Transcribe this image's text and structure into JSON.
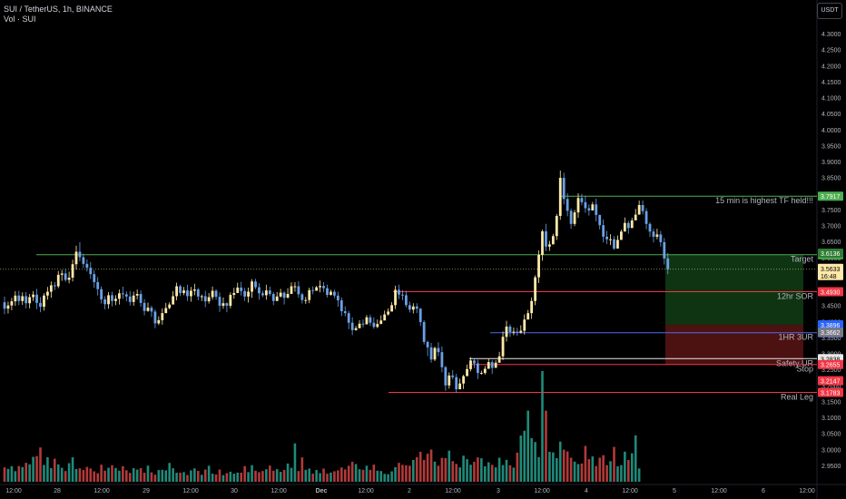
{
  "header": {
    "symbol": "SUI / TetherUS, 1h, BINANCE",
    "volume_label": "Vol · SUI",
    "currency_button": "USDT"
  },
  "colors": {
    "background": "#000000",
    "up": "#ffe9a8",
    "down": "#6aa0e6",
    "vol_up": "#1f8a7a",
    "vol_down": "#b33a3a",
    "axis_text": "#b2b5be"
  },
  "chart_data": {
    "type": "candlestick",
    "x_tick_labels": [
      "12:00",
      "28",
      "12:00",
      "29",
      "12:00",
      "30",
      "12:00",
      "Dec",
      "12:00",
      "2",
      "12:00",
      "3",
      "12:00",
      "4",
      "12:00",
      "5",
      "12:00",
      "6",
      "12:00"
    ],
    "y_tick_labels": [
      "4.3000",
      "4.2500",
      "4.2000",
      "4.1500",
      "4.1000",
      "4.0500",
      "4.0000",
      "3.9500",
      "3.9000",
      "3.8500",
      "3.8000",
      "3.7500",
      "3.7000",
      "3.6500",
      "3.6000",
      "3.5500",
      "3.5000",
      "3.4500",
      "3.4000",
      "3.3500",
      "3.3000",
      "3.2500",
      "3.2000",
      "3.1500",
      "3.1000",
      "3.0500",
      "3.0000",
      "2.9500"
    ],
    "ylim": [
      2.93,
      4.32
    ],
    "levels": [
      {
        "label": "15 min is highest TF held!!!",
        "price": 3.7917,
        "badge": "3.7917",
        "color": "#4caf50"
      },
      {
        "label": "Target",
        "price": 3.6088,
        "badge": "3.6088",
        "color": "#4caf50"
      },
      {
        "label": "12hr SOR",
        "price": 3.493,
        "badge": "3.4930",
        "color": "#f23645"
      },
      {
        "label": "1HR 3UR",
        "price": 3.3649,
        "badge": "3.3649",
        "color": "#4c6cf0"
      },
      {
        "label": "Safety UR",
        "price": 3.2838,
        "badge": "3.2838",
        "color": "#e8e8e8"
      },
      {
        "label": "Stop",
        "price": 3.2655,
        "badge": "3.2655",
        "color": "#f23645"
      },
      {
        "label": "Real Leg",
        "price": 3.1783,
        "badge": "3.1783",
        "color": "#f23645"
      }
    ],
    "extra_price_badges": [
      {
        "text": "3.6136",
        "color": "#2e7d32",
        "price": 3.6136
      },
      {
        "text": "3.3896",
        "color": "#2962ff",
        "price": 3.3896
      },
      {
        "text": "3.3662",
        "color": "#787b86",
        "price": 3.3662
      },
      {
        "text": "3.2147",
        "color": "#f23645",
        "price": 3.2147
      }
    ],
    "current_price": {
      "price": 3.5633,
      "text": "3.5633",
      "countdown": "16:48"
    },
    "position_box": {
      "entry": 3.3896,
      "target": 3.6088,
      "stop": 3.2655
    },
    "candles": [
      [
        3.46,
        3.44,
        3.478,
        3.423
      ],
      [
        3.44,
        3.45,
        3.462,
        3.425
      ],
      [
        3.45,
        3.463,
        3.474,
        3.435
      ],
      [
        3.463,
        3.481,
        3.495,
        3.449
      ],
      [
        3.481,
        3.464,
        3.496,
        3.451
      ],
      [
        3.464,
        3.479,
        3.491,
        3.452
      ],
      [
        3.479,
        3.457,
        3.492,
        3.441
      ],
      [
        3.457,
        3.476,
        3.486,
        3.441
      ],
      [
        3.476,
        3.484,
        3.495,
        3.464
      ],
      [
        3.484,
        3.458,
        3.502,
        3.439
      ],
      [
        3.458,
        3.446,
        3.476,
        3.429
      ],
      [
        3.446,
        3.481,
        3.488,
        3.434
      ],
      [
        3.481,
        3.493,
        3.508,
        3.468
      ],
      [
        3.493,
        3.513,
        3.525,
        3.474
      ],
      [
        3.513,
        3.51,
        3.523,
        3.498
      ],
      [
        3.51,
        3.546,
        3.558,
        3.504
      ],
      [
        3.546,
        3.55,
        3.561,
        3.527
      ],
      [
        3.55,
        3.53,
        3.565,
        3.524
      ],
      [
        3.53,
        3.537,
        3.556,
        3.519
      ],
      [
        3.537,
        3.579,
        3.593,
        3.525
      ],
      [
        3.579,
        3.618,
        3.637,
        3.562
      ],
      [
        3.618,
        3.601,
        3.648,
        3.588
      ],
      [
        3.601,
        3.58,
        3.612,
        3.568
      ],
      [
        3.58,
        3.568,
        3.594,
        3.556
      ],
      [
        3.568,
        3.548,
        3.586,
        3.533
      ],
      [
        3.548,
        3.523,
        3.56,
        3.505
      ],
      [
        3.523,
        3.501,
        3.539,
        3.481
      ],
      [
        3.501,
        3.469,
        3.51,
        3.456
      ],
      [
        3.469,
        3.454,
        3.479,
        3.438
      ],
      [
        3.454,
        3.482,
        3.492,
        3.44
      ],
      [
        3.482,
        3.464,
        3.493,
        3.447
      ],
      [
        3.464,
        3.471,
        3.482,
        3.451
      ],
      [
        3.471,
        3.488,
        3.5,
        3.453
      ],
      [
        3.488,
        3.485,
        3.509,
        3.471
      ],
      [
        3.485,
        3.478,
        3.494,
        3.463
      ],
      [
        3.478,
        3.461,
        3.495,
        3.45
      ],
      [
        3.461,
        3.481,
        3.493,
        3.449
      ],
      [
        3.481,
        3.486,
        3.5,
        3.469
      ],
      [
        3.486,
        3.458,
        3.497,
        3.446
      ],
      [
        3.458,
        3.433,
        3.47,
        3.419
      ],
      [
        3.433,
        3.443,
        3.459,
        3.43
      ],
      [
        3.443,
        3.431,
        3.449,
        3.414
      ],
      [
        3.431,
        3.394,
        3.438,
        3.379
      ],
      [
        3.394,
        3.404,
        3.416,
        3.389
      ],
      [
        3.404,
        3.426,
        3.441,
        3.39
      ],
      [
        3.426,
        3.442,
        3.458,
        3.429
      ],
      [
        3.442,
        3.453,
        3.46,
        3.438
      ],
      [
        3.453,
        3.479,
        3.495,
        3.461
      ],
      [
        3.479,
        3.51,
        3.521,
        3.466
      ],
      [
        3.51,
        3.489,
        3.515,
        3.48
      ],
      [
        3.489,
        3.497,
        3.508,
        3.482
      ],
      [
        3.497,
        3.479,
        3.515,
        3.464
      ],
      [
        3.479,
        3.496,
        3.508,
        3.462
      ],
      [
        3.496,
        3.5,
        3.518,
        3.482
      ],
      [
        3.5,
        3.478,
        3.505,
        3.466
      ],
      [
        3.478,
        3.479,
        3.484,
        3.464
      ],
      [
        3.479,
        3.463,
        3.496,
        3.445
      ],
      [
        3.463,
        3.476,
        3.489,
        3.456
      ],
      [
        3.476,
        3.496,
        3.509,
        3.468
      ],
      [
        3.496,
        3.477,
        3.501,
        3.468
      ],
      [
        3.477,
        3.449,
        3.491,
        3.43
      ],
      [
        3.449,
        3.457,
        3.475,
        3.44
      ],
      [
        3.457,
        3.449,
        3.46,
        3.429
      ],
      [
        3.449,
        3.483,
        3.491,
        3.441
      ],
      [
        3.483,
        3.489,
        3.505,
        3.471
      ],
      [
        3.489,
        3.506,
        3.521,
        3.49
      ],
      [
        3.506,
        3.495,
        3.524,
        3.481
      ],
      [
        3.495,
        3.478,
        3.505,
        3.464
      ],
      [
        3.478,
        3.493,
        3.506,
        3.459
      ],
      [
        3.493,
        3.525,
        3.532,
        3.474
      ],
      [
        3.525,
        3.507,
        3.533,
        3.501
      ],
      [
        3.507,
        3.488,
        3.52,
        3.468
      ],
      [
        3.488,
        3.482,
        3.496,
        3.476
      ],
      [
        3.482,
        3.497,
        3.515,
        3.468
      ],
      [
        3.497,
        3.486,
        3.509,
        3.479
      ],
      [
        3.486,
        3.464,
        3.492,
        3.451
      ],
      [
        3.464,
        3.478,
        3.492,
        3.464
      ],
      [
        3.478,
        3.49,
        3.502,
        3.475
      ],
      [
        3.49,
        3.474,
        3.494,
        3.453
      ],
      [
        3.474,
        3.486,
        3.504,
        3.473
      ],
      [
        3.486,
        3.51,
        3.522,
        3.494
      ],
      [
        3.51,
        3.51,
        3.523,
        3.493
      ],
      [
        3.51,
        3.485,
        3.526,
        3.474
      ],
      [
        3.485,
        3.467,
        3.49,
        3.456
      ],
      [
        3.467,
        3.467,
        3.477,
        3.455
      ],
      [
        3.467,
        3.498,
        3.506,
        3.457
      ],
      [
        3.498,
        3.496,
        3.51,
        3.485
      ],
      [
        3.496,
        3.507,
        3.511,
        3.502
      ],
      [
        3.507,
        3.511,
        3.528,
        3.491
      ],
      [
        3.511,
        3.504,
        3.523,
        3.492
      ],
      [
        3.504,
        3.483,
        3.515,
        3.475
      ],
      [
        3.483,
        3.493,
        3.499,
        3.481
      ],
      [
        3.493,
        3.481,
        3.499,
        3.473
      ],
      [
        3.481,
        3.466,
        3.493,
        3.446
      ],
      [
        3.466,
        3.432,
        3.475,
        3.417
      ],
      [
        3.432,
        3.426,
        3.447,
        3.416
      ],
      [
        3.426,
        3.396,
        3.433,
        3.376
      ],
      [
        3.396,
        3.373,
        3.413,
        3.357
      ],
      [
        3.373,
        3.379,
        3.386,
        3.371
      ],
      [
        3.379,
        3.393,
        3.404,
        3.379
      ],
      [
        3.393,
        3.391,
        3.406,
        3.381
      ],
      [
        3.391,
        3.413,
        3.42,
        3.395
      ],
      [
        3.413,
        3.396,
        3.421,
        3.386
      ],
      [
        3.396,
        3.383,
        3.413,
        3.377
      ],
      [
        3.383,
        3.392,
        3.406,
        3.379
      ],
      [
        3.392,
        3.403,
        3.419,
        3.392
      ],
      [
        3.403,
        3.422,
        3.434,
        3.405
      ],
      [
        3.422,
        3.431,
        3.441,
        3.418
      ],
      [
        3.431,
        3.451,
        3.46,
        3.445
      ],
      [
        3.451,
        3.499,
        3.512,
        3.439
      ],
      [
        3.499,
        3.484,
        3.515,
        3.47
      ],
      [
        3.484,
        3.482,
        3.498,
        3.466
      ],
      [
        3.482,
        3.451,
        3.496,
        3.444
      ],
      [
        3.451,
        3.437,
        3.462,
        3.428
      ],
      [
        3.437,
        3.447,
        3.457,
        3.425
      ],
      [
        3.447,
        3.44,
        3.457,
        3.426
      ],
      [
        3.44,
        3.398,
        3.442,
        3.386
      ],
      [
        3.398,
        3.336,
        3.404,
        3.328
      ],
      [
        3.336,
        3.319,
        3.34,
        3.292
      ],
      [
        3.319,
        3.281,
        3.333,
        3.271
      ],
      [
        3.281,
        3.317,
        3.321,
        3.276
      ],
      [
        3.317,
        3.304,
        3.335,
        3.291
      ],
      [
        3.304,
        3.257,
        3.322,
        3.241
      ],
      [
        3.257,
        3.2,
        3.261,
        3.183
      ],
      [
        3.2,
        3.231,
        3.241,
        3.19
      ],
      [
        3.231,
        3.226,
        3.248,
        3.219
      ],
      [
        3.226,
        3.188,
        3.236,
        3.176
      ],
      [
        3.188,
        3.206,
        3.221,
        3.195
      ],
      [
        3.206,
        3.229,
        3.233,
        3.189
      ],
      [
        3.229,
        3.251,
        3.265,
        3.232
      ],
      [
        3.251,
        3.278,
        3.288,
        3.244
      ],
      [
        3.278,
        3.269,
        3.282,
        3.254
      ],
      [
        3.269,
        3.239,
        3.28,
        3.22
      ],
      [
        3.239,
        3.239,
        3.246,
        3.234
      ],
      [
        3.239,
        3.252,
        3.261,
        3.234
      ],
      [
        3.252,
        3.273,
        3.284,
        3.258
      ],
      [
        3.273,
        3.255,
        3.279,
        3.236
      ],
      [
        3.255,
        3.271,
        3.279,
        3.262
      ],
      [
        3.271,
        3.291,
        3.305,
        3.276
      ],
      [
        3.291,
        3.352,
        3.369,
        3.279
      ],
      [
        3.352,
        3.384,
        3.402,
        3.337
      ],
      [
        3.384,
        3.367,
        3.391,
        3.352
      ],
      [
        3.367,
        3.368,
        3.381,
        3.357
      ],
      [
        3.368,
        3.365,
        3.38,
        3.355
      ],
      [
        3.365,
        3.371,
        3.388,
        3.362
      ],
      [
        3.371,
        3.406,
        3.422,
        3.359
      ],
      [
        3.406,
        3.426,
        3.436,
        3.41
      ],
      [
        3.426,
        3.464,
        3.475,
        3.408
      ],
      [
        3.464,
        3.538,
        3.544,
        3.451
      ],
      [
        3.538,
        3.608,
        3.622,
        3.52
      ],
      [
        3.608,
        3.682,
        3.687,
        3.59
      ],
      [
        3.682,
        3.634,
        3.705,
        3.62
      ],
      [
        3.634,
        3.641,
        3.652,
        3.621
      ],
      [
        3.641,
        3.667,
        3.674,
        3.649
      ],
      [
        3.667,
        3.73,
        3.736,
        3.655
      ],
      [
        3.73,
        3.849,
        3.872,
        3.718
      ],
      [
        3.849,
        3.783,
        3.865,
        3.766
      ],
      [
        3.783,
        3.746,
        3.801,
        3.729
      ],
      [
        3.746,
        3.705,
        3.753,
        3.69
      ],
      [
        3.705,
        3.741,
        3.749,
        3.698
      ],
      [
        3.741,
        3.786,
        3.801,
        3.724
      ],
      [
        3.786,
        3.773,
        3.799,
        3.763
      ],
      [
        3.773,
        3.754,
        3.793,
        3.74
      ],
      [
        3.754,
        3.747,
        3.766,
        3.731
      ],
      [
        3.747,
        3.766,
        3.774,
        3.756
      ],
      [
        3.766,
        3.733,
        3.784,
        3.713
      ],
      [
        3.733,
        3.701,
        3.734,
        3.688
      ],
      [
        3.701,
        3.665,
        3.719,
        3.647
      ],
      [
        3.665,
        3.657,
        3.683,
        3.642
      ],
      [
        3.657,
        3.657,
        3.673,
        3.639
      ],
      [
        3.657,
        3.628,
        3.667,
        3.624
      ],
      [
        3.628,
        3.655,
        3.669,
        3.64
      ],
      [
        3.655,
        3.681,
        3.687,
        3.676
      ],
      [
        3.681,
        3.708,
        3.725,
        3.694
      ],
      [
        3.708,
        3.692,
        3.715,
        3.674
      ],
      [
        3.692,
        3.716,
        3.724,
        3.705
      ],
      [
        3.716,
        3.734,
        3.752,
        3.723
      ],
      [
        3.734,
        3.764,
        3.778,
        3.75
      ],
      [
        3.764,
        3.745,
        3.778,
        3.735
      ],
      [
        3.745,
        3.705,
        3.754,
        3.688
      ],
      [
        3.705,
        3.681,
        3.71,
        3.664
      ],
      [
        3.681,
        3.665,
        3.69,
        3.647
      ],
      [
        3.665,
        3.672,
        3.69,
        3.657
      ],
      [
        3.672,
        3.648,
        3.683,
        3.634
      ],
      [
        3.648,
        3.597,
        3.661,
        3.578
      ],
      [
        3.597,
        3.563,
        3.614,
        3.548
      ]
    ],
    "volumes": [
      0.13,
      0.116,
      0.141,
      0.096,
      0.142,
      0.133,
      0.171,
      0.158,
      0.225,
      0.232,
      0.31,
      0.152,
      0.222,
      0.123,
      0.208,
      0.157,
      0.126,
      0.097,
      0.168,
      0.221,
      0.116,
      0.121,
      0.106,
      0.134,
      0.12,
      0.094,
      0.077,
      0.154,
      0.1,
      0.127,
      0.149,
      0.124,
      0.1,
      0.141,
      0.104,
      0.08,
      0.123,
      0.11,
      0.123,
      0.082,
      0.146,
      0.085,
      0.064,
      0.106,
      0.108,
      0.103,
      0.17,
      0.122,
      0.081,
      0.082,
      0.087,
      0.061,
      0.103,
      0.121,
      0.098,
      0.063,
      0.11,
      0.145,
      0.073,
      0.066,
      0.11,
      0.06,
      0.078,
      0.091,
      0.073,
      0.083,
      0.082,
      0.141,
      0.087,
      0.15,
      0.1,
      0.086,
      0.097,
      0.113,
      0.146,
      0.1,
      0.114,
      0.089,
      0.107,
      0.165,
      0.126,
      0.347,
      0.097,
      0.22,
      0.108,
      0.119,
      0.073,
      0.106,
      0.078,
      0.119,
      0.073,
      0.083,
      0.095,
      0.103,
      0.129,
      0.111,
      0.145,
      0.181,
      0.16,
      0.113,
      0.108,
      0.145,
      0.107,
      0.155,
      0.1,
      0.097,
      0.071,
      0.068,
      0.094,
      0.132,
      0.171,
      0.153,
      0.149,
      0.145,
      0.197,
      0.223,
      0.271,
      0.197,
      0.253,
      0.291,
      0.182,
      0.145,
      0.216,
      0.214,
      0.281,
      0.186,
      0.161,
      0.13,
      0.236,
      0.204,
      0.154,
      0.18,
      0.22,
      0.212,
      0.14,
      0.176,
      0.153,
      0.13,
      0.217,
      0.151,
      0.198,
      0.149,
      0.128,
      0.263,
      0.418,
      0.461,
      0.643,
      0.394,
      0.359,
      0.223,
      1.0,
      0.642,
      0.271,
      0.265,
      0.213,
      0.363,
      0.29,
      0.274,
      0.217,
      0.182,
      0.16,
      0.165,
      0.324,
      0.204,
      0.229,
      0.142,
      0.218,
      0.24,
      0.15,
      0.186,
      0.315,
      0.14,
      0.15,
      0.272,
      0.197,
      0.257,
      0.419,
      0.12
    ]
  }
}
